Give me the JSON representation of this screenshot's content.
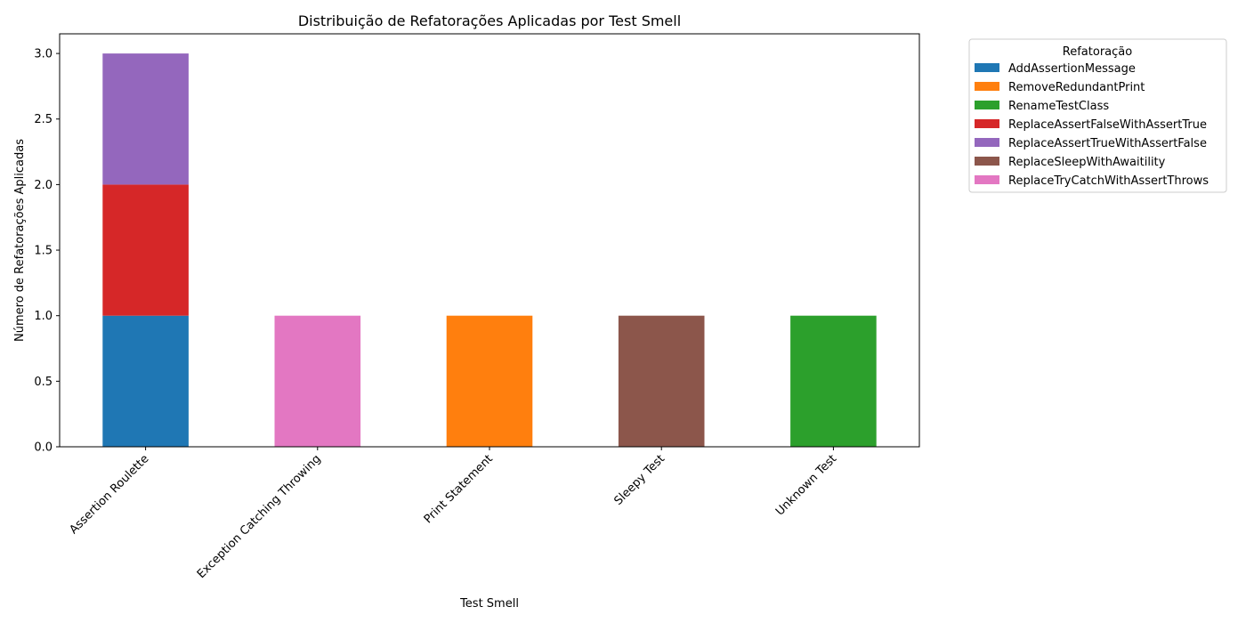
{
  "chart_data": {
    "type": "bar",
    "stacked": true,
    "title": "Distribuição de Refatorações Aplicadas por Test Smell",
    "xlabel": "Test Smell",
    "ylabel": "Número de Refatorações Aplicadas",
    "ylim": [
      0,
      3.15
    ],
    "yticks": [
      "0.0",
      "0.5",
      "1.0",
      "1.5",
      "2.0",
      "2.5",
      "3.0"
    ],
    "grid": false,
    "legend_title": "Refatoração",
    "legend_position": "outside-top-right",
    "categories": [
      "Assertion Roulette",
      "Exception Catching Throwing",
      "Print Statement",
      "Sleepy Test",
      "Unknown Test"
    ],
    "series": [
      {
        "name": "AddAssertionMessage",
        "color": "#1f77b4",
        "values": [
          1,
          0,
          0,
          0,
          0
        ]
      },
      {
        "name": "RemoveRedundantPrint",
        "color": "#ff7f0e",
        "values": [
          0,
          0,
          1,
          0,
          0
        ]
      },
      {
        "name": "RenameTestClass",
        "color": "#2ca02c",
        "values": [
          0,
          0,
          0,
          0,
          1
        ]
      },
      {
        "name": "ReplaceAssertFalseWithAssertTrue",
        "color": "#d62728",
        "values": [
          1,
          0,
          0,
          0,
          0
        ]
      },
      {
        "name": "ReplaceAssertTrueWithAssertFalse",
        "color": "#9467bd",
        "values": [
          1,
          0,
          0,
          0,
          0
        ]
      },
      {
        "name": "ReplaceSleepWithAwaitility",
        "color": "#8c564b",
        "values": [
          0,
          0,
          0,
          1,
          0
        ]
      },
      {
        "name": "ReplaceTryCatchWithAssertThrows",
        "color": "#e377c2",
        "values": [
          0,
          1,
          0,
          0,
          0
        ]
      }
    ]
  }
}
